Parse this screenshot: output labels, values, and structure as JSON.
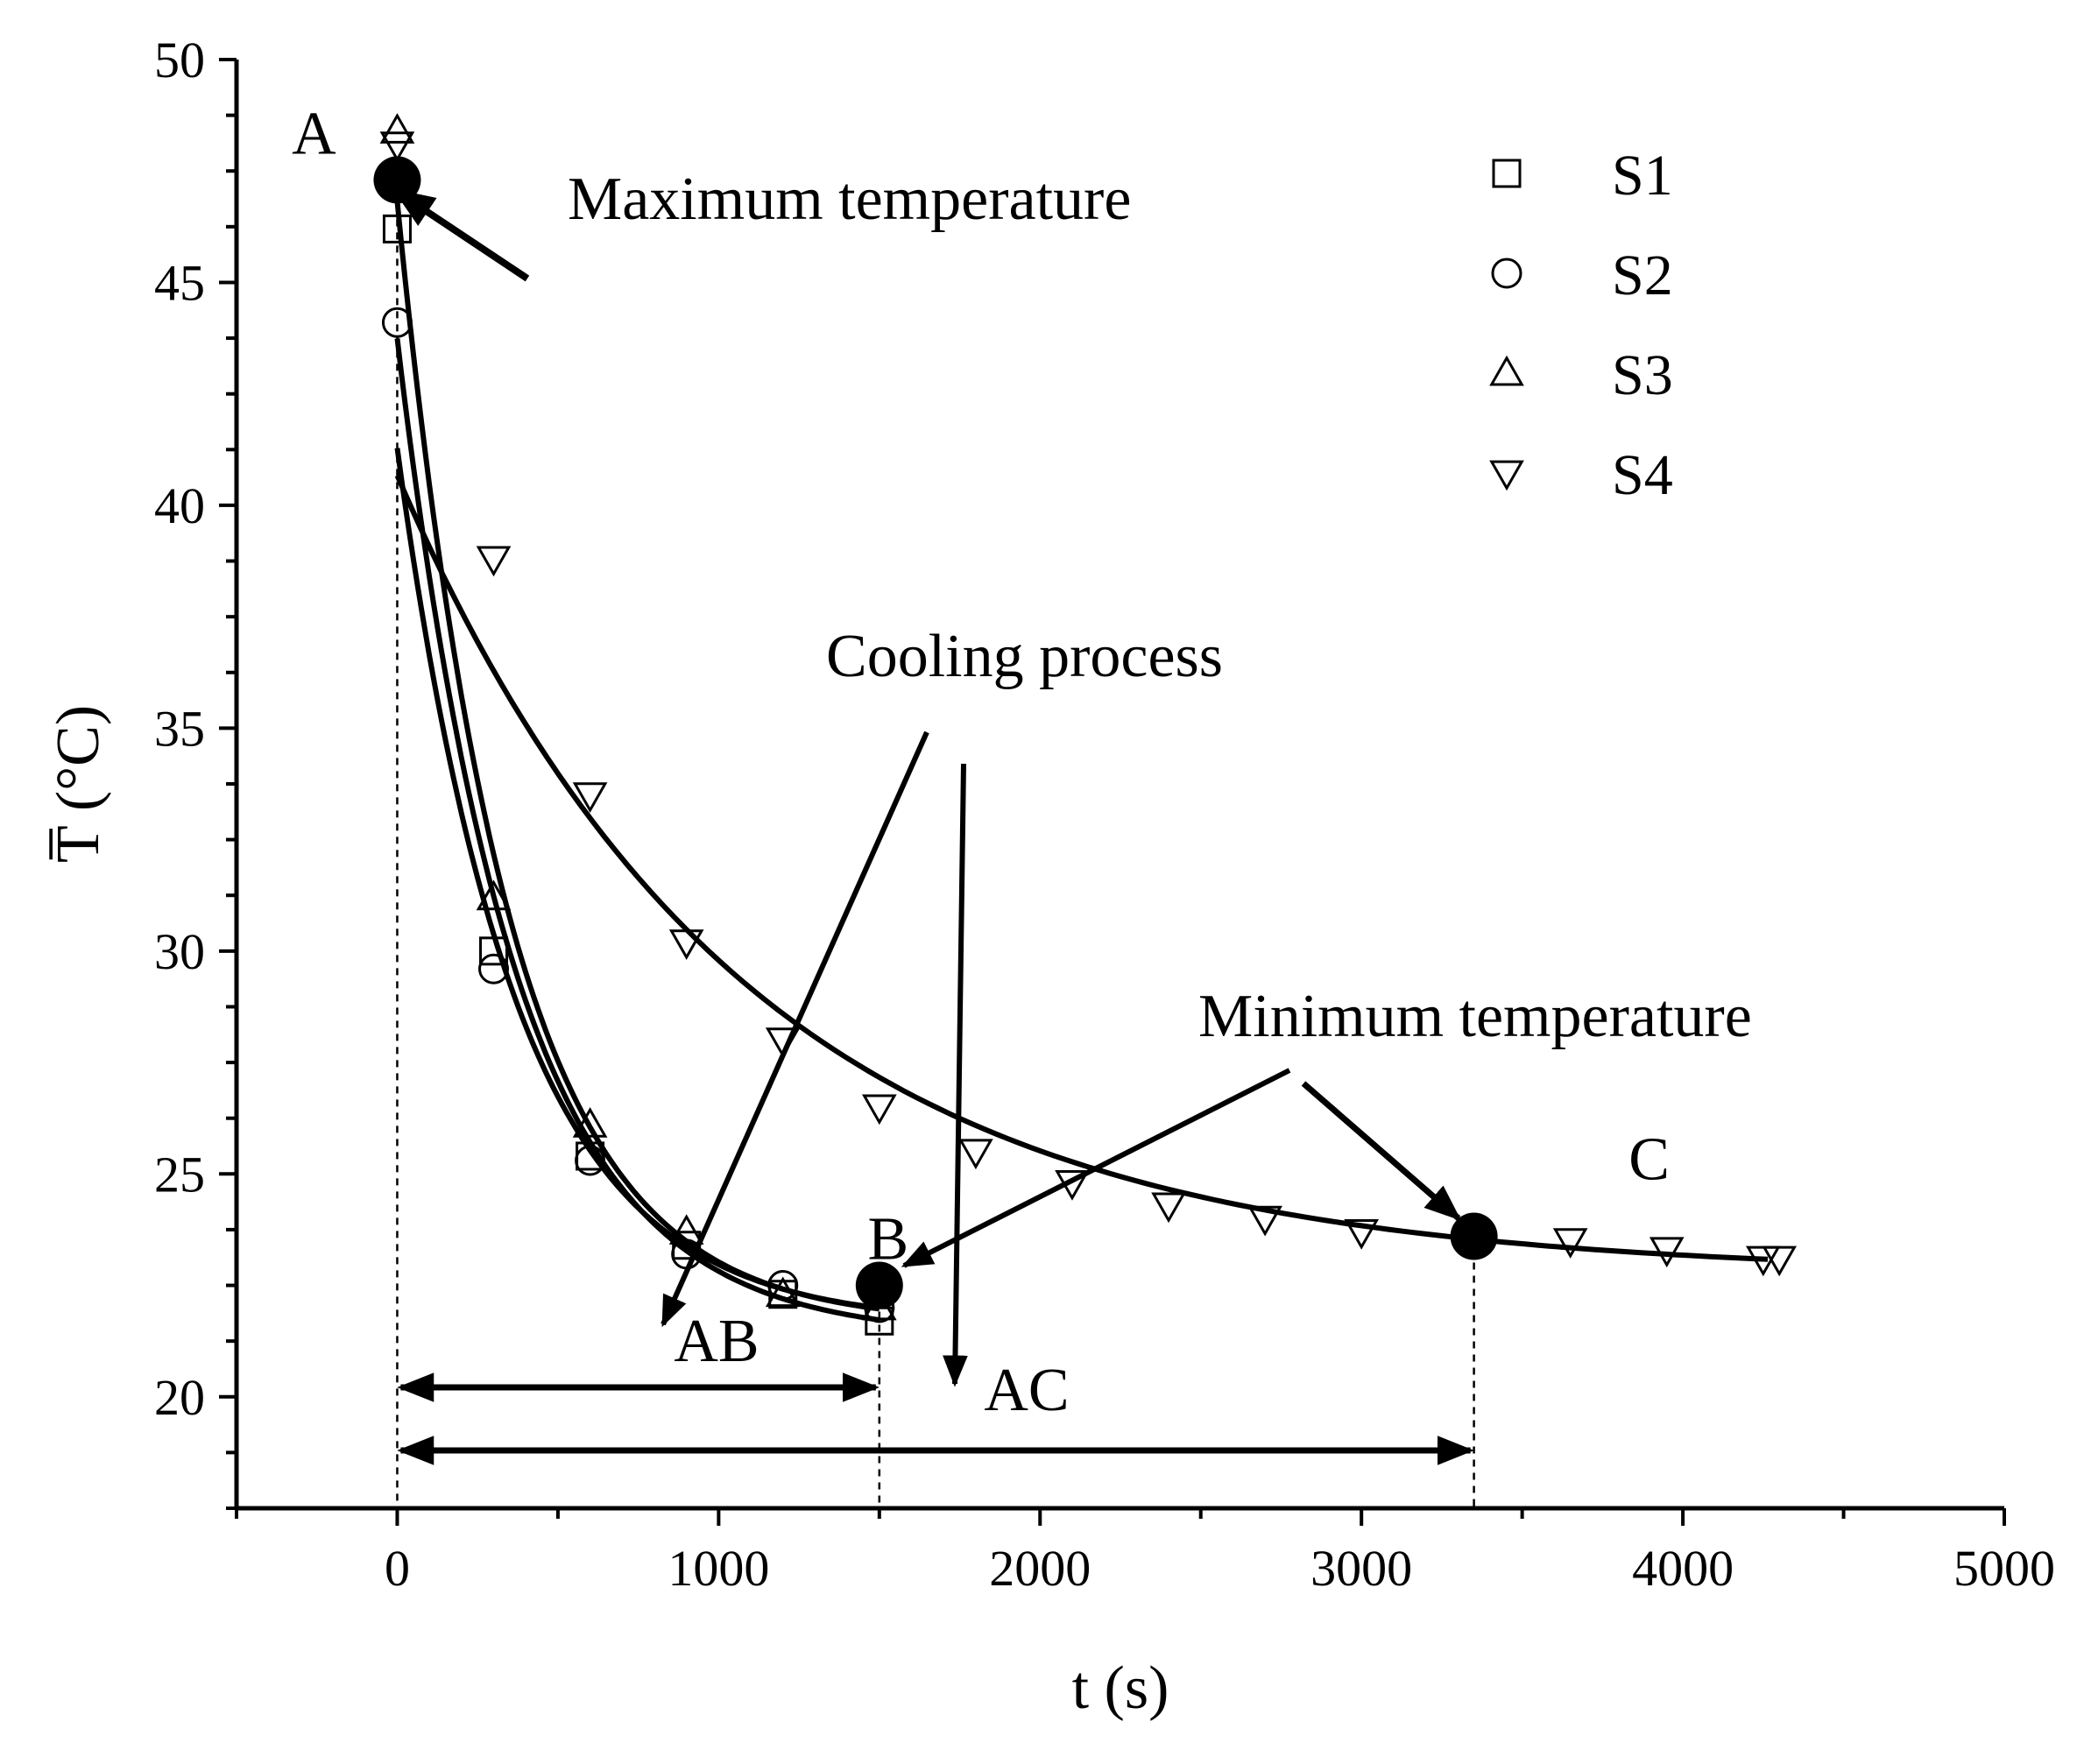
{
  "chart_data": {
    "type": "scatter",
    "title": "",
    "xlabel": "t (s)",
    "ylabel": "T̅ (°C)",
    "xlim": [
      -500,
      5000
    ],
    "ylim": [
      17.5,
      50
    ],
    "x_ticks": [
      0,
      1000,
      2000,
      3000,
      4000,
      5000
    ],
    "y_ticks": [
      20,
      25,
      30,
      35,
      40,
      45,
      50
    ],
    "grid": false,
    "legend_position": "top-right",
    "series": [
      {
        "name": "S1",
        "marker": "square",
        "x": [
          0,
          300,
          600,
          900,
          1200,
          1500
        ],
        "y": [
          46.2,
          30.0,
          25.4,
          23.4,
          22.3,
          21.7
        ]
      },
      {
        "name": "S2",
        "marker": "circle",
        "x": [
          0,
          300,
          600,
          900,
          1200,
          1500
        ],
        "y": [
          44.1,
          29.6,
          25.3,
          23.2,
          22.5,
          22.0
        ]
      },
      {
        "name": "S3",
        "marker": "triangle-up",
        "x": [
          0,
          300,
          600,
          900,
          1200,
          1500
        ],
        "y": [
          48.4,
          31.2,
          26.1,
          23.7,
          22.3,
          22.0
        ]
      },
      {
        "name": "S4",
        "marker": "triangle-down",
        "x": [
          0,
          300,
          600,
          900,
          1200,
          1500,
          1800,
          2100,
          2400,
          2700,
          3000,
          3350,
          3650,
          3950,
          4250,
          4300
        ],
        "y": [
          48.1,
          38.8,
          33.5,
          30.2,
          28.0,
          26.5,
          25.5,
          24.8,
          24.3,
          24.0,
          23.7,
          23.6,
          23.5,
          23.3,
          23.1,
          23.1
        ]
      }
    ],
    "key_points": [
      {
        "label": "A",
        "x": 0,
        "y": 47.3
      },
      {
        "label": "B",
        "x": 1500,
        "y": 22.5
      },
      {
        "label": "C",
        "x": 3350,
        "y": 23.6
      }
    ],
    "intervals": [
      {
        "label": "AB",
        "from": 0,
        "to": 1500
      },
      {
        "label": "AC",
        "from": 0,
        "to": 3350
      }
    ],
    "annotations": {
      "max": "Maximum temperature",
      "cooling": "Cooling process",
      "min": "Minimum temperature"
    }
  }
}
